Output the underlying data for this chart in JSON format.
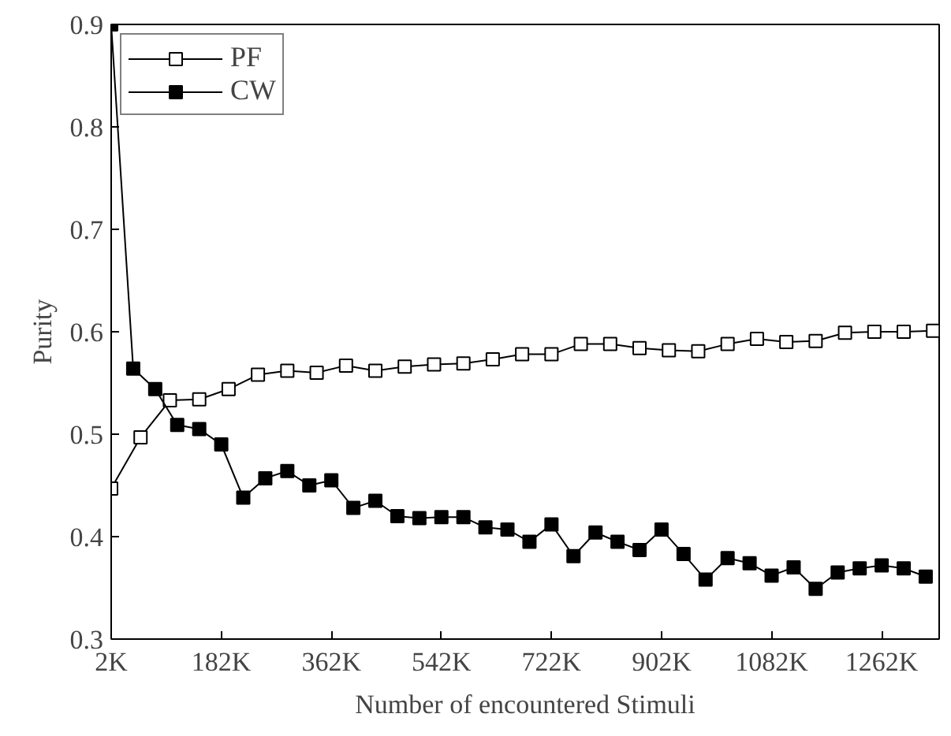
{
  "chart_data": {
    "type": "line",
    "xlabel": "Number of encountered Stimuli",
    "ylabel": "Purity",
    "xlim": [
      2,
      1356
    ],
    "xticks": [
      {
        "value": 2,
        "label": "2K"
      },
      {
        "value": 182,
        "label": "182K"
      },
      {
        "value": 362,
        "label": "362K"
      },
      {
        "value": 542,
        "label": "542K"
      },
      {
        "value": 722,
        "label": "722K"
      },
      {
        "value": 902,
        "label": "902K"
      },
      {
        "value": 1082,
        "label": "1082K"
      },
      {
        "value": 1262,
        "label": "1262K"
      }
    ],
    "ylim": [
      0.3,
      0.9
    ],
    "yticks": [
      0.3,
      0.4,
      0.5,
      0.6,
      0.7,
      0.8,
      0.9
    ],
    "legend": "top left",
    "grid": false,
    "marker": "square",
    "line_style": "solid",
    "series": [
      {
        "name": "PF",
        "color": "#ffffff",
        "x": [
          2,
          50,
          98,
          146,
          194,
          242,
          290,
          338,
          386,
          434,
          482,
          530,
          578,
          626,
          674,
          722,
          770,
          818,
          866,
          914,
          962,
          1010,
          1058,
          1106,
          1154,
          1202,
          1250,
          1298,
          1346
        ],
        "values": [
          0.447,
          0.497,
          0.533,
          0.534,
          0.544,
          0.558,
          0.562,
          0.56,
          0.567,
          0.562,
          0.566,
          0.568,
          0.569,
          0.573,
          0.578,
          0.578,
          0.588,
          0.588,
          0.584,
          0.582,
          0.581,
          0.588,
          0.593,
          0.59,
          0.591,
          0.599,
          0.6,
          0.6,
          0.601
        ]
      },
      {
        "name": "CW",
        "color": "#000000",
        "x": [
          2,
          38,
          74,
          110,
          146,
          182,
          218,
          254,
          290,
          326,
          362,
          398,
          434,
          470,
          506,
          542,
          578,
          614,
          650,
          686,
          722,
          758,
          794,
          830,
          866,
          902,
          938,
          974,
          1010,
          1046,
          1082,
          1118,
          1154,
          1190,
          1226,
          1262,
          1298,
          1334
        ],
        "values": [
          0.9,
          0.564,
          0.544,
          0.509,
          0.505,
          0.49,
          0.438,
          0.457,
          0.464,
          0.45,
          0.455,
          0.428,
          0.435,
          0.42,
          0.418,
          0.419,
          0.419,
          0.409,
          0.407,
          0.395,
          0.412,
          0.381,
          0.404,
          0.395,
          0.387,
          0.407,
          0.383,
          0.358,
          0.379,
          0.374,
          0.362,
          0.37,
          0.349,
          0.365,
          0.369,
          0.372,
          0.369,
          0.361
        ]
      }
    ]
  }
}
